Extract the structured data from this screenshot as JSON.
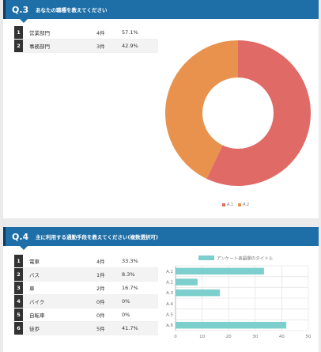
{
  "q3": {
    "number": "Q.3",
    "title": "あなたの職種を教えてください",
    "rows": [
      {
        "idx": "1",
        "label": "営業部門",
        "count": "4件",
        "pct": "57.1%"
      },
      {
        "idx": "2",
        "label": "事務部門",
        "count": "3件",
        "pct": "42.9%"
      }
    ],
    "legend": [
      "A.1",
      "A.2"
    ]
  },
  "q4": {
    "number": "Q.4",
    "title": "主に利用する通勤手段を教えてください(複数選択可)",
    "rows": [
      {
        "idx": "1",
        "label": "電車",
        "count": "4件",
        "pct": "33.3%"
      },
      {
        "idx": "2",
        "label": "バス",
        "count": "1件",
        "pct": "8.3%"
      },
      {
        "idx": "3",
        "label": "車",
        "count": "2件",
        "pct": "16.7%"
      },
      {
        "idx": "4",
        "label": "バイク",
        "count": "0件",
        "pct": "0%"
      },
      {
        "idx": "5",
        "label": "自転車",
        "count": "0件",
        "pct": "0%"
      },
      {
        "idx": "6",
        "label": "徒歩",
        "count": "5件",
        "pct": "41.7%"
      }
    ]
  },
  "colors": {
    "header": "#1e6fa7",
    "a1": "#e06b66",
    "a2": "#e8924e",
    "bar": "#7dcfcd"
  },
  "chart_data": [
    {
      "type": "pie",
      "categories": [
        "A.1",
        "A.2"
      ],
      "values": [
        57.1,
        42.9
      ],
      "colors": [
        "#e06b66",
        "#e8924e"
      ],
      "legend_position": "bottom"
    },
    {
      "type": "bar",
      "orientation": "horizontal",
      "categories": [
        "A.1",
        "A.2",
        "A.3",
        "A.4",
        "A.5",
        "A.6"
      ],
      "series": [
        {
          "name": "アンケート表題欄のタイトル",
          "values": [
            33.3,
            8.3,
            16.7,
            0,
            0,
            41.7
          ]
        }
      ],
      "xlim": [
        0,
        50
      ],
      "xticks": [
        "0",
        "10",
        "20",
        "30",
        "40",
        "50"
      ],
      "grid": true,
      "legend_position": "top"
    }
  ]
}
